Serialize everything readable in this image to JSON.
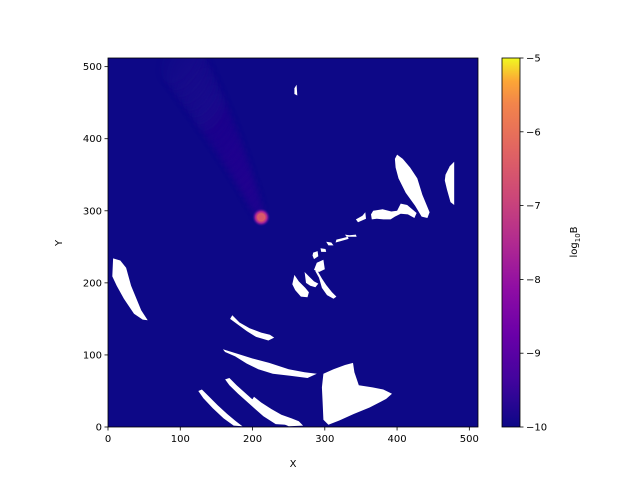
{
  "chart_data": {
    "type": "heatmap",
    "title": "",
    "xlabel": "X",
    "ylabel": "Y",
    "xlim": [
      0,
      512
    ],
    "ylim": [
      0,
      512
    ],
    "x_ticks": [
      0,
      100,
      200,
      300,
      400,
      500
    ],
    "y_ticks": [
      0,
      100,
      200,
      300,
      400,
      500
    ],
    "colormap": "plasma",
    "background_value": -10,
    "colorbar": {
      "label": "log10B",
      "label_base": "log",
      "label_sub": "10",
      "label_tail": "B",
      "range": [
        -10,
        -5
      ],
      "ticks": [
        -10,
        -9,
        -8,
        -7,
        -6,
        -5
      ],
      "tick_labels": [
        "−10",
        "−9",
        "−8",
        "−7",
        "−6",
        "−5"
      ]
    },
    "hotspot": {
      "x": 212,
      "y": 291,
      "peak_log10B": -6.5
    },
    "plume": {
      "start": [
        212,
        291
      ],
      "end": [
        100,
        512
      ],
      "value_log10B": -9.6
    },
    "masked_regions_color": "#ffffff",
    "masked_regions": [
      [
        [
          258,
          462
        ],
        [
          262,
          460
        ],
        [
          261,
          475
        ],
        [
          258,
          470
        ]
      ],
      [
        [
          400,
          378
        ],
        [
          408,
          372
        ],
        [
          418,
          360
        ],
        [
          428,
          345
        ],
        [
          435,
          322
        ],
        [
          445,
          298
        ],
        [
          442,
          290
        ],
        [
          434,
          292
        ],
        [
          425,
          307
        ],
        [
          412,
          325
        ],
        [
          402,
          345
        ],
        [
          398,
          360
        ],
        [
          397,
          372
        ]
      ],
      [
        [
          467,
          350
        ],
        [
          473,
          362
        ],
        [
          479,
          368
        ],
        [
          479,
          308
        ],
        [
          474,
          312
        ],
        [
          469,
          330
        ],
        [
          466,
          342
        ]
      ],
      [
        [
          367,
          300
        ],
        [
          380,
          302
        ],
        [
          392,
          299
        ],
        [
          400,
          300
        ],
        [
          405,
          310
        ],
        [
          414,
          308
        ],
        [
          421,
          302
        ],
        [
          427,
          297
        ],
        [
          424,
          290
        ],
        [
          415,
          295
        ],
        [
          405,
          296
        ],
        [
          397,
          292
        ],
        [
          391,
          288
        ],
        [
          381,
          288
        ],
        [
          372,
          289
        ],
        [
          365,
          288
        ],
        [
          364,
          295
        ]
      ],
      [
        [
          343,
          288
        ],
        [
          352,
          293
        ],
        [
          356,
          298
        ],
        [
          357,
          289
        ],
        [
          346,
          284
        ]
      ],
      [
        [
          328,
          267
        ],
        [
          334,
          266
        ],
        [
          343,
          267
        ],
        [
          344,
          264
        ],
        [
          330,
          264
        ]
      ],
      [
        [
          316,
          260
        ],
        [
          324,
          262
        ],
        [
          332,
          264
        ],
        [
          333,
          261
        ],
        [
          322,
          258
        ],
        [
          315,
          256
        ]
      ],
      [
        [
          302,
          257
        ],
        [
          309,
          256
        ],
        [
          312,
          252
        ],
        [
          305,
          252
        ]
      ],
      [
        [
          294,
          248
        ],
        [
          301,
          247
        ],
        [
          302,
          243
        ],
        [
          295,
          243
        ]
      ],
      [
        [
          284,
          242
        ],
        [
          290,
          244
        ],
        [
          291,
          237
        ],
        [
          285,
          233
        ],
        [
          283,
          238
        ]
      ],
      [
        [
          289,
          228
        ],
        [
          298,
          232
        ],
        [
          300,
          219
        ],
        [
          292,
          215
        ],
        [
          285,
          218
        ]
      ],
      [
        [
          7,
          234
        ],
        [
          17,
          231
        ],
        [
          25,
          221
        ],
        [
          32,
          196
        ],
        [
          46,
          162
        ],
        [
          55,
          148
        ],
        [
          48,
          149
        ],
        [
          36,
          157
        ],
        [
          22,
          178
        ],
        [
          12,
          196
        ],
        [
          6,
          209
        ]
      ],
      [
        [
          288,
          220
        ],
        [
          296,
          206
        ],
        [
          302,
          197
        ],
        [
          310,
          187
        ],
        [
          316,
          181
        ],
        [
          312,
          178
        ],
        [
          303,
          183
        ],
        [
          296,
          193
        ],
        [
          292,
          207
        ],
        [
          287,
          216
        ]
      ],
      [
        [
          272,
          215
        ],
        [
          278,
          209
        ],
        [
          285,
          202
        ],
        [
          291,
          199
        ],
        [
          287,
          194
        ],
        [
          280,
          196
        ],
        [
          274,
          200
        ]
      ],
      [
        [
          258,
          211
        ],
        [
          264,
          202
        ],
        [
          273,
          193
        ],
        [
          278,
          187
        ],
        [
          276,
          180
        ],
        [
          267,
          181
        ],
        [
          259,
          190
        ],
        [
          255,
          198
        ]
      ],
      [
        [
          172,
          155
        ],
        [
          182,
          145
        ],
        [
          196,
          137
        ],
        [
          212,
          131
        ],
        [
          224,
          128
        ],
        [
          230,
          124
        ],
        [
          222,
          120
        ],
        [
          205,
          125
        ],
        [
          192,
          133
        ],
        [
          180,
          142
        ],
        [
          169,
          150
        ]
      ],
      [
        [
          159,
          108
        ],
        [
          178,
          102
        ],
        [
          200,
          95
        ],
        [
          223,
          89
        ],
        [
          250,
          80
        ],
        [
          272,
          76
        ],
        [
          289,
          74
        ],
        [
          276,
          68
        ],
        [
          252,
          71
        ],
        [
          228,
          74
        ],
        [
          208,
          80
        ],
        [
          192,
          88
        ],
        [
          176,
          98
        ],
        [
          162,
          104
        ]
      ],
      [
        [
          162,
          66
        ],
        [
          168,
          68
        ],
        [
          178,
          58
        ],
        [
          198,
          40
        ],
        [
          215,
          26
        ],
        [
          228,
          17
        ],
        [
          236,
          12
        ],
        [
          246,
          3
        ],
        [
          232,
          4
        ],
        [
          215,
          15
        ],
        [
          198,
          30
        ],
        [
          180,
          46
        ],
        [
          168,
          58
        ]
      ],
      [
        [
          130,
          52
        ],
        [
          140,
          42
        ],
        [
          152,
          30
        ],
        [
          165,
          18
        ],
        [
          177,
          8
        ],
        [
          186,
          1
        ],
        [
          174,
          2
        ],
        [
          160,
          12
        ],
        [
          145,
          26
        ],
        [
          132,
          40
        ],
        [
          125,
          50
        ]
      ],
      [
        [
          202,
          42
        ],
        [
          212,
          34
        ],
        [
          226,
          25
        ],
        [
          240,
          17
        ],
        [
          254,
          12
        ],
        [
          264,
          8
        ],
        [
          270,
          2
        ],
        [
          250,
          1
        ],
        [
          232,
          9
        ],
        [
          215,
          20
        ],
        [
          204,
          30
        ],
        [
          199,
          37
        ]
      ],
      [
        [
          298,
          74
        ],
        [
          312,
          80
        ],
        [
          328,
          86
        ],
        [
          339,
          89
        ],
        [
          341,
          76
        ],
        [
          347,
          58
        ],
        [
          366,
          55
        ],
        [
          381,
          52
        ],
        [
          393,
          46
        ],
        [
          385,
          39
        ],
        [
          362,
          27
        ],
        [
          340,
          18
        ],
        [
          320,
          9
        ],
        [
          305,
          3
        ],
        [
          298,
          10
        ],
        [
          297,
          35
        ],
        [
          296,
          55
        ]
      ]
    ]
  }
}
